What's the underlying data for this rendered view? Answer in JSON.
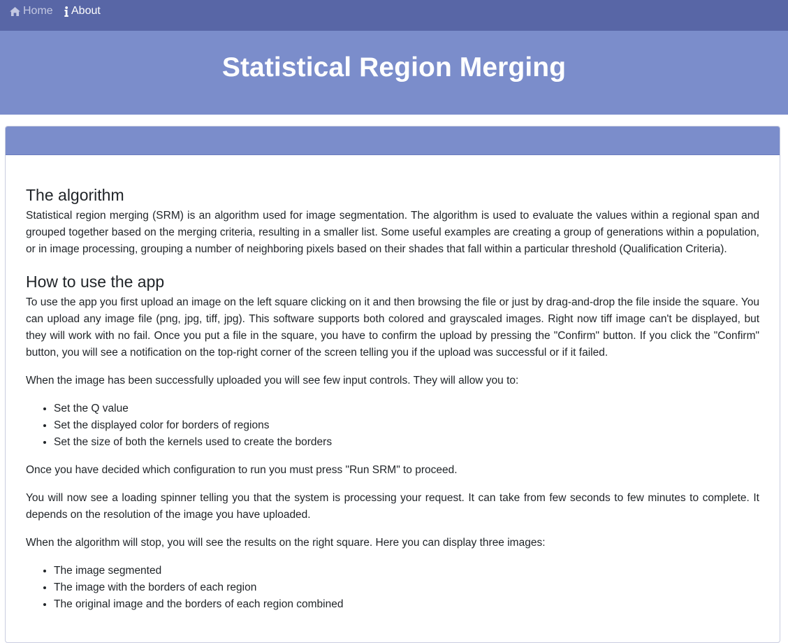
{
  "nav": {
    "items": [
      {
        "icon": "home-icon",
        "label": "Home"
      },
      {
        "icon": "info-icon",
        "label": "About"
      }
    ]
  },
  "hero": {
    "title": "Statistical Region Merging"
  },
  "sections": {
    "algorithm": {
      "heading": "The algorithm",
      "paragraph": "Statistical region merging (SRM) is an algorithm used for image segmentation. The algorithm is used to evaluate the values within a regional span and grouped together based on the merging criteria, resulting in a smaller list. Some useful examples are creating a group of generations within a population, or in image processing, grouping a number of neighboring pixels based on their shades that fall within a particular threshold (Qualification Criteria)."
    },
    "howto": {
      "heading": "How to use the app",
      "p1": "To use the app you first upload an image on the left square clicking on it and then browsing the file or just by drag-and-drop the file inside the square. You can upload any image file (png, jpg, tiff, jpg). This software supports both colored and grayscaled images. Right now tiff image can't be displayed, but they will work with no fail. Once you put a file in the square, you have to confirm the upload by pressing the \"Confirm\" button. If you click the \"Confirm\" button, you will see a notification on the top-right corner of the screen telling you if the upload was successful or if it failed.",
      "p2": "When the image has been successfully uploaded you will see few input controls. They will allow you to:",
      "controls": [
        "Set the Q value",
        "Set the displayed color for borders of regions",
        "Set the size of both the kernels used to create the borders"
      ],
      "p3": "Once you have decided which configuration to run you must press \"Run SRM\" to proceed.",
      "p4": "You will now see a loading spinner telling you that the system is processing your request. It can take from few seconds to few minutes to complete. It depends on the resolution of the image you have uploaded.",
      "p5": "When the algorithm will stop, you will see the results on the right square. Here you can display three images:",
      "results": [
        "The image segmented",
        "The image with the borders of each region",
        "The original image and the borders of each region combined"
      ]
    }
  },
  "colors": {
    "navbar": "#5866a6",
    "hero": "#7b8dcb",
    "card_header": "#7b8dcb"
  }
}
